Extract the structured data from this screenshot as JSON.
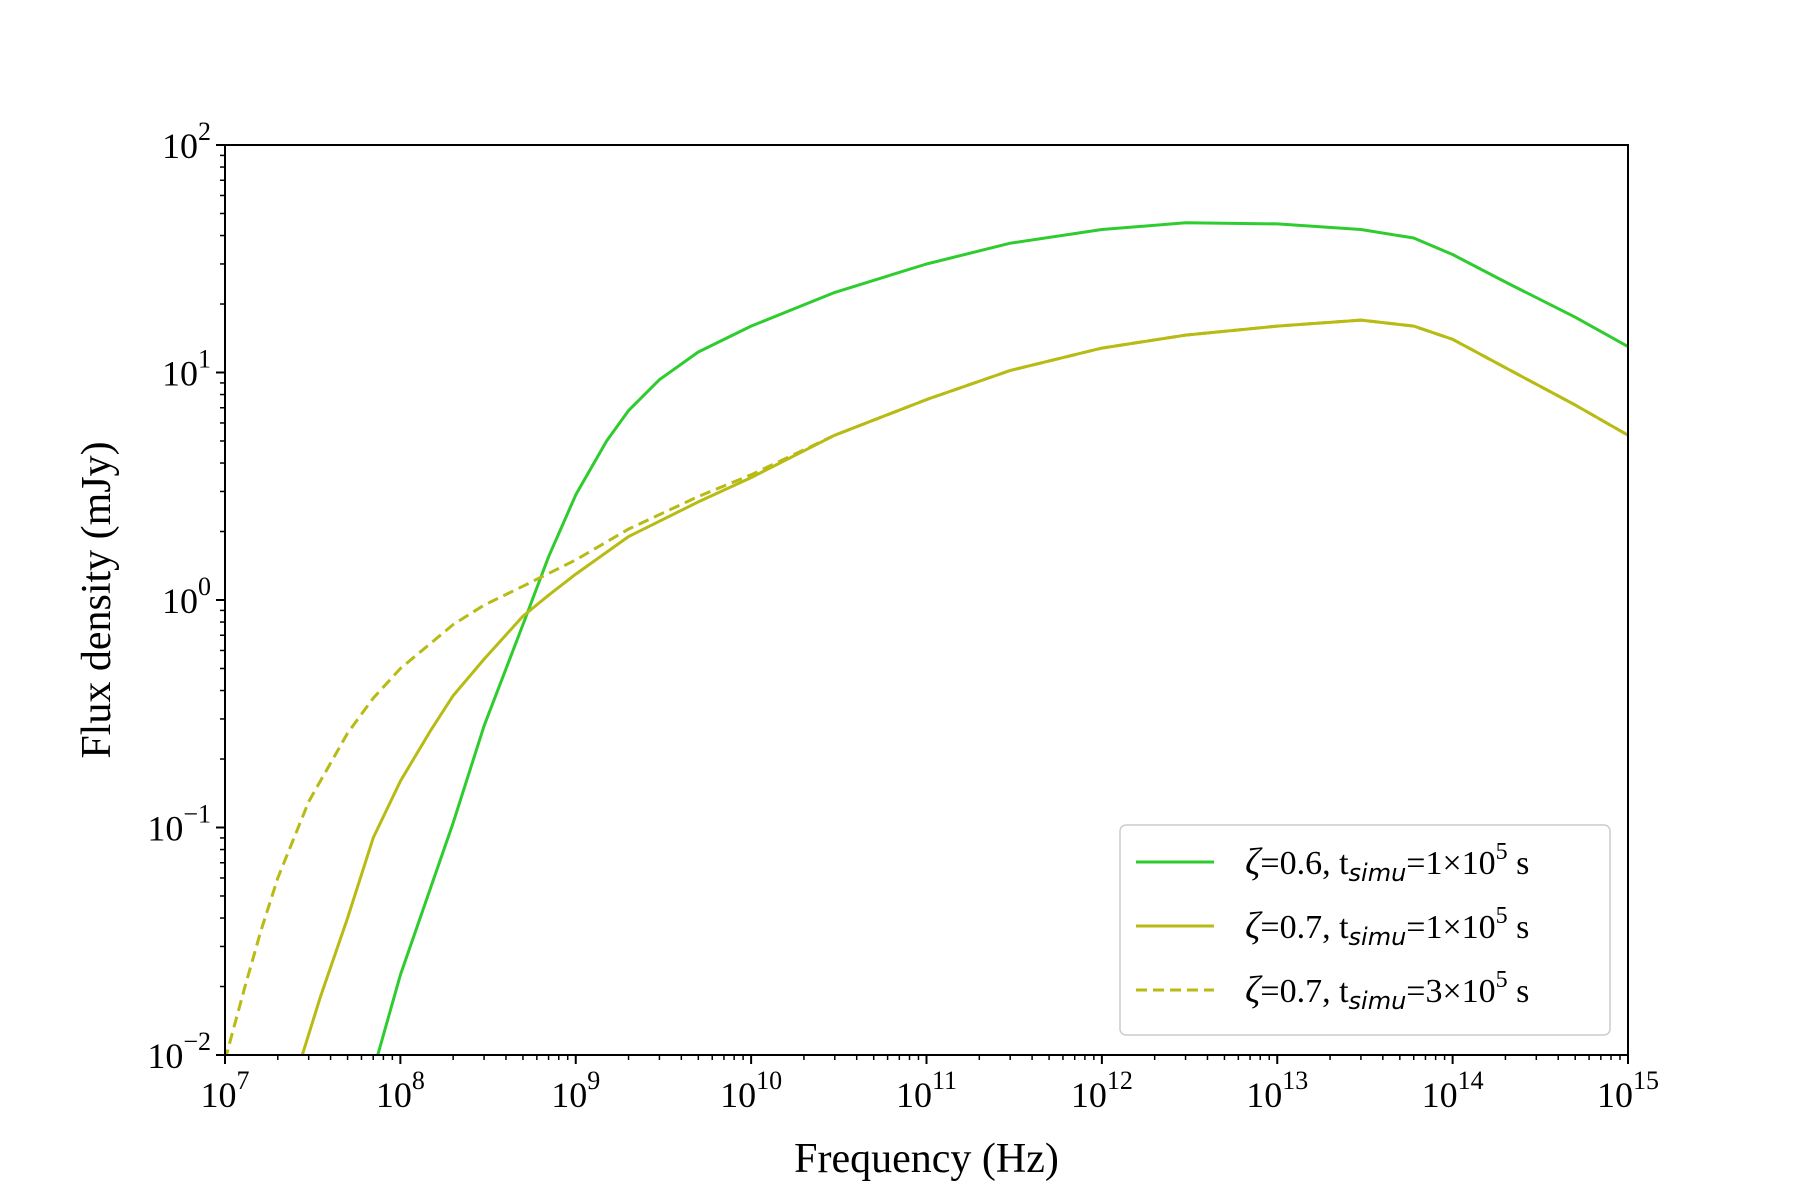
{
  "chart_data": {
    "type": "line",
    "xlabel": "Frequency (Hz)",
    "ylabel": "Flux density (mJy)",
    "xscale": "log",
    "yscale": "log",
    "xlim": [
      10000000.0,
      1000000000000000.0
    ],
    "ylim": [
      0.01,
      100
    ],
    "grid": false,
    "legend_position": "lower-right",
    "x_tick_labels": [
      {
        "base": "10",
        "exp": "7"
      },
      {
        "base": "10",
        "exp": "8"
      },
      {
        "base": "10",
        "exp": "9"
      },
      {
        "base": "10",
        "exp": "10"
      },
      {
        "base": "10",
        "exp": "11"
      },
      {
        "base": "10",
        "exp": "12"
      },
      {
        "base": "10",
        "exp": "13"
      },
      {
        "base": "10",
        "exp": "14"
      },
      {
        "base": "10",
        "exp": "15"
      }
    ],
    "y_tick_labels": [
      {
        "base": "10",
        "exp": "−2"
      },
      {
        "base": "10",
        "exp": "−1"
      },
      {
        "base": "10",
        "exp": "0"
      },
      {
        "base": "10",
        "exp": "1"
      },
      {
        "base": "10",
        "exp": "2"
      }
    ],
    "series": [
      {
        "name": "ζ=0.6, t_simu=1×10^5 s",
        "legend": {
          "zeta": "ζ",
          "pre": "=0.6, t",
          "sub": "simu",
          "mid": "=1×10",
          "sup": "5",
          "post": " s"
        },
        "color": "#2ecc2e",
        "dash": "solid",
        "points": [
          [
            70000000.0,
            0.0085
          ],
          [
            100000000.0,
            0.0225
          ],
          [
            200000000.0,
            0.105
          ],
          [
            300000000.0,
            0.28
          ],
          [
            500000000.0,
            0.78
          ],
          [
            700000000.0,
            1.55
          ],
          [
            1000000000.0,
            2.9
          ],
          [
            1500000000.0,
            5.0
          ],
          [
            2000000000.0,
            6.8
          ],
          [
            3000000000.0,
            9.3
          ],
          [
            5000000000.0,
            12.3
          ],
          [
            10000000000.0,
            16.0
          ],
          [
            30000000000.0,
            22.5
          ],
          [
            100000000000.0,
            30.0
          ],
          [
            300000000000.0,
            37.0
          ],
          [
            1000000000000.0,
            42.5
          ],
          [
            3000000000000.0,
            45.5
          ],
          [
            10000000000000.0,
            45.0
          ],
          [
            30000000000000.0,
            42.5
          ],
          [
            60000000000000.0,
            39.0
          ],
          [
            100000000000000.0,
            33.0
          ],
          [
            200000000000000.0,
            25.0
          ],
          [
            500000000000000.0,
            17.5
          ],
          [
            1000000000000000.0,
            13.0
          ]
        ]
      },
      {
        "name": "ζ=0.7, t_simu=1×10^5 s",
        "legend": {
          "zeta": "ζ",
          "pre": "=0.7, t",
          "sub": "simu",
          "mid": "=1×10",
          "sup": "5",
          "post": " s"
        },
        "color": "#b8bb14",
        "dash": "solid",
        "points": [
          [
            27000000.0,
            0.0095
          ],
          [
            35000000.0,
            0.018
          ],
          [
            50000000.0,
            0.04
          ],
          [
            70000000.0,
            0.09
          ],
          [
            100000000.0,
            0.16
          ],
          [
            150000000.0,
            0.27
          ],
          [
            200000000.0,
            0.38
          ],
          [
            300000000.0,
            0.55
          ],
          [
            500000000.0,
            0.85
          ],
          [
            700000000.0,
            1.05
          ],
          [
            1000000000.0,
            1.3
          ],
          [
            2000000000.0,
            1.9
          ],
          [
            5000000000.0,
            2.7
          ],
          [
            10000000000.0,
            3.45
          ],
          [
            30000000000.0,
            5.3
          ],
          [
            100000000000.0,
            7.6
          ],
          [
            300000000000.0,
            10.2
          ],
          [
            1000000000000.0,
            12.8
          ],
          [
            3000000000000.0,
            14.6
          ],
          [
            10000000000000.0,
            16.0
          ],
          [
            30000000000000.0,
            17.0
          ],
          [
            60000000000000.0,
            16.0
          ],
          [
            100000000000000.0,
            14.0
          ],
          [
            200000000000000.0,
            10.5
          ],
          [
            500000000000000.0,
            7.2
          ],
          [
            1000000000000000.0,
            5.3
          ]
        ]
      },
      {
        "name": "ζ=0.7, t_simu=3×10^5 s",
        "legend": {
          "zeta": "ζ",
          "pre": "=0.7, t",
          "sub": "simu",
          "mid": "=3×10",
          "sup": "5",
          "post": " s"
        },
        "color": "#b8bb14",
        "dash": "dashed",
        "points": [
          [
            10000000.0,
            0.0095
          ],
          [
            13000000.0,
            0.02
          ],
          [
            16000000.0,
            0.035
          ],
          [
            20000000.0,
            0.06
          ],
          [
            30000000.0,
            0.13
          ],
          [
            50000000.0,
            0.26
          ],
          [
            70000000.0,
            0.37
          ],
          [
            100000000.0,
            0.5
          ],
          [
            200000000.0,
            0.78
          ],
          [
            300000000.0,
            0.95
          ],
          [
            500000000.0,
            1.15
          ],
          [
            1000000000.0,
            1.5
          ],
          [
            2000000000.0,
            2.05
          ],
          [
            5000000000.0,
            2.85
          ],
          [
            10000000000.0,
            3.55
          ],
          [
            30000000000.0,
            5.3
          ],
          [
            100000000000.0,
            7.6
          ],
          [
            300000000000.0,
            10.2
          ],
          [
            1000000000000.0,
            12.8
          ],
          [
            3000000000000.0,
            14.6
          ],
          [
            10000000000000.0,
            16.0
          ],
          [
            30000000000000.0,
            17.0
          ],
          [
            60000000000000.0,
            16.0
          ],
          [
            100000000000000.0,
            14.0
          ],
          [
            200000000000000.0,
            10.5
          ],
          [
            500000000000000.0,
            7.2
          ],
          [
            1000000000000000.0,
            5.3
          ]
        ]
      }
    ]
  }
}
